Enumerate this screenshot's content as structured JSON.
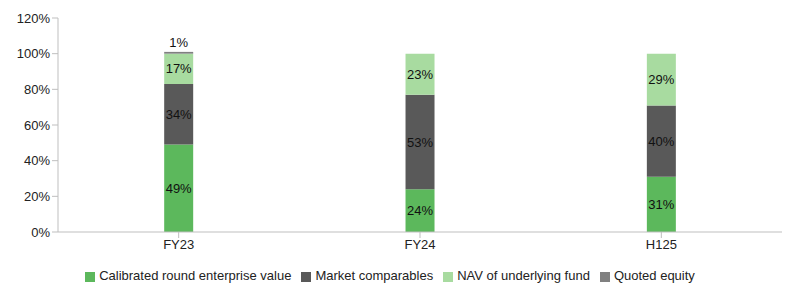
{
  "chart_data": {
    "type": "bar",
    "stacked": true,
    "data_labels": true,
    "grid": false,
    "legend": "bottom",
    "categories": [
      "FY23",
      "FY24",
      "H125"
    ],
    "series": [
      {
        "name": "Calibrated round enterprise value",
        "color": "#5cb85c",
        "values": [
          49,
          24,
          31
        ],
        "value_labels": [
          "49%",
          "24%",
          "31%"
        ]
      },
      {
        "name": "Market comparables",
        "color": "#595959",
        "values": [
          34,
          53,
          40
        ],
        "value_labels": [
          "34%",
          "53%",
          "40%"
        ]
      },
      {
        "name": "NAV of underlying fund",
        "color": "#a8dba0",
        "values": [
          17,
          23,
          29
        ],
        "value_labels": [
          "17%",
          "23%",
          "29%"
        ]
      },
      {
        "name": "Quoted equity",
        "color": "#808080",
        "values": [
          1,
          null,
          null
        ],
        "value_labels": [
          "1%",
          null,
          null
        ]
      }
    ],
    "ylim": [
      0,
      120
    ],
    "yticks": [
      {
        "value": 0,
        "label": "0%"
      },
      {
        "value": 20,
        "label": "20%"
      },
      {
        "value": 40,
        "label": "40%"
      },
      {
        "value": 60,
        "label": "60%"
      },
      {
        "value": 80,
        "label": "80%"
      },
      {
        "value": 100,
        "label": "100%"
      },
      {
        "value": 120,
        "label": "120%"
      }
    ]
  }
}
